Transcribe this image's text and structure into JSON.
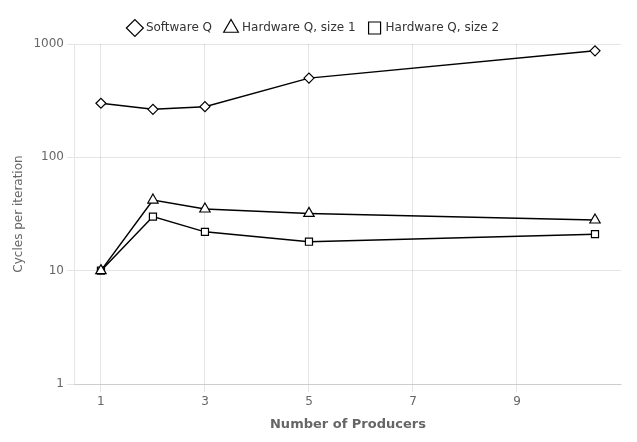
{
  "chart_data": {
    "type": "line",
    "x": [
      1,
      2,
      3,
      5,
      10.5
    ],
    "series": [
      {
        "name": "Software Q",
        "color": "#000000",
        "marker": "diamond",
        "values": [
          300,
          265,
          280,
          500,
          870
        ]
      },
      {
        "name": "Hardware Q, size 1",
        "color": "#000000",
        "marker": "triangle",
        "values": [
          10,
          42,
          35,
          32,
          28
        ]
      },
      {
        "name": "Hardware Q, size 2",
        "color": "#000000",
        "marker": "square",
        "values": [
          10,
          30,
          22,
          18,
          21
        ]
      }
    ],
    "xlabel": "Number of Producers",
    "ylabel": "Cycles per iteration",
    "xlim": [
      0.5,
      11.0
    ],
    "xticks": [
      1,
      3,
      5,
      7,
      9
    ],
    "ylim": [
      1,
      1000
    ],
    "yticks": [
      1,
      10,
      100,
      1000
    ],
    "log": "y",
    "grid": true,
    "legend": "top"
  }
}
